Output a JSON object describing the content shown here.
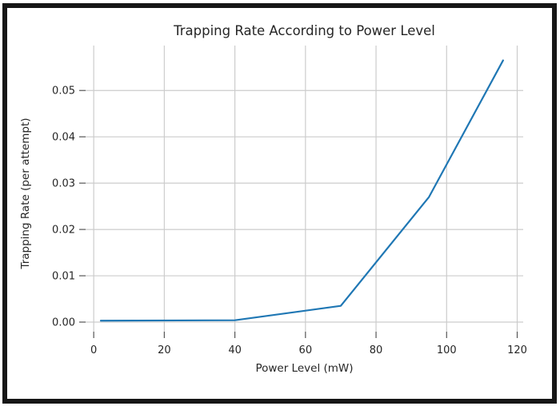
{
  "chart_data": {
    "type": "line",
    "title": "Trapping Rate According to Power Level",
    "xlabel": "Power Level (mW)",
    "ylabel": "Trapping Rate (per attempt)",
    "x": [
      2,
      40,
      70,
      95,
      116
    ],
    "y": [
      0.0003,
      0.0004,
      0.0035,
      0.027,
      0.0565
    ],
    "xlim": [
      -2.3,
      121.7
    ],
    "ylim": [
      -0.00207,
      0.0597
    ],
    "xticks": [
      0,
      20,
      40,
      60,
      80,
      100,
      120
    ],
    "xtick_labels": [
      "0",
      "20",
      "40",
      "60",
      "80",
      "100",
      "120"
    ],
    "yticks": [
      0,
      0.01,
      0.02,
      0.03,
      0.04,
      0.05
    ],
    "ytick_labels": [
      "0.00",
      "0.01",
      "0.02",
      "0.03",
      "0.04",
      "0.05"
    ],
    "grid": true,
    "legend_position": "none",
    "colors": {
      "line": "#1f77b4",
      "grid": "#cccccc",
      "tick": "#555555",
      "text": "#262626",
      "frame": "#161616"
    }
  }
}
